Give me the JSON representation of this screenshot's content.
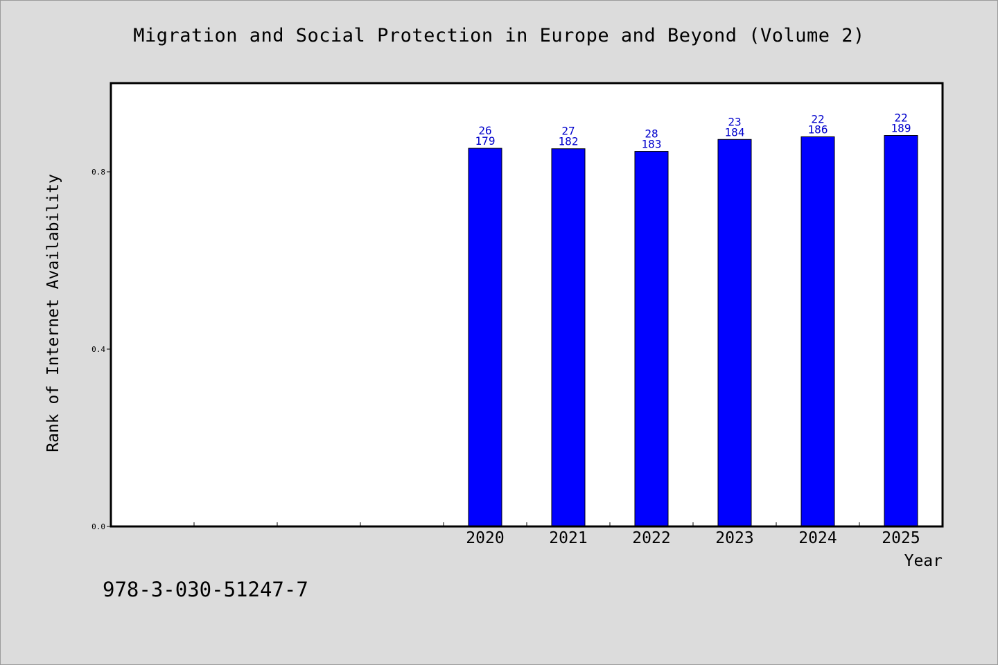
{
  "chart_data": {
    "type": "bar",
    "title": "Migration and Social Protection in Europe and Beyond (Volume 2)",
    "xlabel": "Year",
    "ylabel": "Rank of Internet Availability",
    "categories": [
      "",
      "",
      "",
      "",
      "2020",
      "2021",
      "2022",
      "2023",
      "2024",
      "2025"
    ],
    "values": [
      null,
      null,
      null,
      null,
      0.853,
      0.852,
      0.846,
      0.873,
      0.879,
      0.882
    ],
    "labels_top": [
      "",
      "",
      "",
      "",
      "26",
      "27",
      "28",
      "23",
      "22",
      "22"
    ],
    "labels_bottom": [
      "",
      "",
      "",
      "",
      "179",
      "182",
      "183",
      "184",
      "186",
      "189"
    ],
    "ylim": [
      0,
      1.0
    ],
    "yticks": [
      0.0,
      0.4,
      0.8
    ],
    "ytick_labels": [
      "0.0",
      "0.4",
      "0.8"
    ],
    "grid": false,
    "colors": {
      "bar": "#0000ff",
      "label": "#0000cc",
      "background": "#dcdcdc",
      "plot": "#ffffff"
    }
  },
  "footer": {
    "isbn": "978-3-030-51247-7"
  }
}
